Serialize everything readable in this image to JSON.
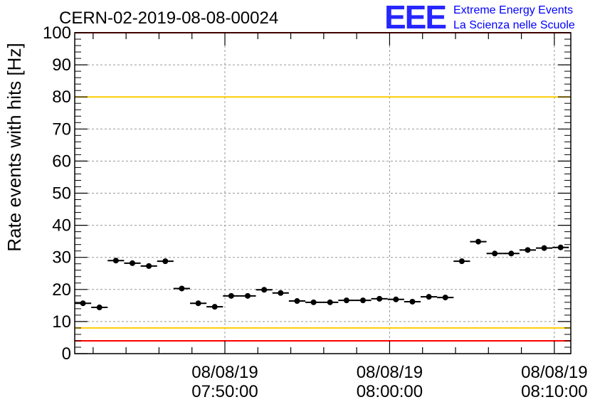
{
  "chart_data": {
    "type": "scatter",
    "title": "CERN-02-2019-08-08-00024",
    "ylabel": "Rate events with hits [Hz]",
    "xlabel": "",
    "ylim": [
      0,
      100
    ],
    "y_ticks": [
      "0",
      "10",
      "20",
      "30",
      "40",
      "50",
      "60",
      "70",
      "80",
      "90",
      "100"
    ],
    "x_axis": "time",
    "xlim": [
      "2019-08-08 07:40:53",
      "2019-08-08 08:11:00"
    ],
    "x_ticks": [
      {
        "time": "2019-08-08 07:50:00",
        "date_label": "08/08/19",
        "time_label": "07:50:00"
      },
      {
        "time": "2019-08-08 08:00:00",
        "date_label": "08/08/19",
        "time_label": "08:00:00"
      },
      {
        "time": "2019-08-08 08:10:00",
        "date_label": "08/08/19",
        "time_label": "08:10:00"
      }
    ],
    "grid": true,
    "bin_width_seconds": 60,
    "x": [
      "2019-08-08 07:41:23",
      "2019-08-08 07:42:23",
      "2019-08-08 07:43:23",
      "2019-08-08 07:44:23",
      "2019-08-08 07:45:23",
      "2019-08-08 07:46:23",
      "2019-08-08 07:47:23",
      "2019-08-08 07:48:23",
      "2019-08-08 07:49:23",
      "2019-08-08 07:50:23",
      "2019-08-08 07:51:23",
      "2019-08-08 07:52:23",
      "2019-08-08 07:53:23",
      "2019-08-08 07:54:23",
      "2019-08-08 07:55:23",
      "2019-08-08 07:56:23",
      "2019-08-08 07:57:23",
      "2019-08-08 07:58:23",
      "2019-08-08 07:59:23",
      "2019-08-08 08:00:23",
      "2019-08-08 08:01:23",
      "2019-08-08 08:02:23",
      "2019-08-08 08:03:23",
      "2019-08-08 08:04:23",
      "2019-08-08 08:05:23",
      "2019-08-08 08:06:23",
      "2019-08-08 08:07:23",
      "2019-08-08 08:08:23",
      "2019-08-08 08:09:23",
      "2019-08-08 08:10:23"
    ],
    "values": [
      15.7,
      14.4,
      29.0,
      28.2,
      27.3,
      28.8,
      20.3,
      15.7,
      14.6,
      18.0,
      18.0,
      19.9,
      18.9,
      16.4,
      16.0,
      16.0,
      16.6,
      16.6,
      17.1,
      16.9,
      16.2,
      17.7,
      17.5,
      28.8,
      34.9,
      31.2,
      31.2,
      32.3,
      32.9,
      33.1
    ],
    "reference_lines": [
      {
        "value": 100,
        "color": "#ff0000"
      },
      {
        "value": 80,
        "color": "#ffcc00"
      },
      {
        "value": 8,
        "color": "#ffcc00"
      },
      {
        "value": 4,
        "color": "#ff0000"
      }
    ],
    "marker_color": "#000000"
  },
  "logo": {
    "text": "EEE",
    "line1": "Extreme Energy Events",
    "line2": "La Scienza nelle Scuole",
    "color": "#0000ff"
  }
}
